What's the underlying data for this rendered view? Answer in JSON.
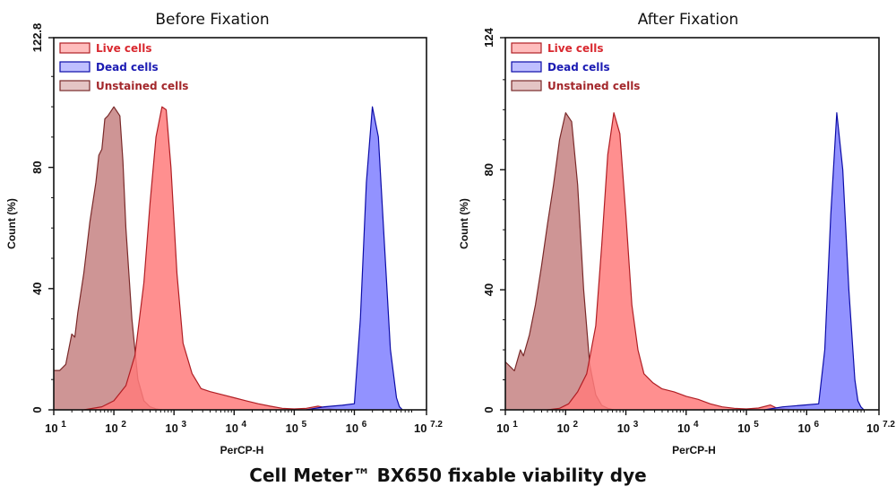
{
  "caption": "Cell Meter™ BX650 fixable viability dye",
  "chart_data": [
    {
      "type": "area",
      "title": "Before Fixation",
      "xlabel": "PerCP-H",
      "ylabel": "Count  (%)",
      "xscale": "log10",
      "xlim_log10": [
        1,
        7.2
      ],
      "ylim": [
        0,
        122.8
      ],
      "xticks": [
        {
          "base": "10",
          "exp": "1"
        },
        {
          "base": "10",
          "exp": "2"
        },
        {
          "base": "10",
          "exp": "3"
        },
        {
          "base": "10",
          "exp": "4"
        },
        {
          "base": "10",
          "exp": "5"
        },
        {
          "base": "10",
          "exp": "6"
        },
        {
          "base": "10",
          "exp": "7.2"
        }
      ],
      "yticks": [
        "0",
        "40",
        "80",
        "122.8"
      ],
      "ytick_values": [
        0,
        40,
        80,
        122.8
      ],
      "legend": {
        "placement": "top-left"
      },
      "series": [
        {
          "name": "Unstained cells",
          "color": "#c98a8a",
          "stroke": "#7a2a2a",
          "label_color": "#a3272b",
          "x_log10": [
            1.0,
            1.1,
            1.2,
            1.3,
            1.35,
            1.4,
            1.5,
            1.6,
            1.7,
            1.75,
            1.8,
            1.85,
            1.9,
            2.0,
            2.1,
            2.15,
            2.2,
            2.3,
            2.4,
            2.5,
            2.6,
            2.7,
            2.8
          ],
          "y": [
            13,
            13,
            15,
            25,
            24,
            32,
            45,
            62,
            75,
            84,
            86,
            96,
            97,
            100,
            97,
            82,
            60,
            30,
            10,
            3,
            1,
            0.3,
            0
          ]
        },
        {
          "name": "Live cells",
          "color": "#ff7b7b",
          "stroke": "#b01e24",
          "label_color": "#d9282f",
          "x_log10": [
            1.5,
            1.8,
            2.0,
            2.2,
            2.35,
            2.5,
            2.6,
            2.7,
            2.8,
            2.87,
            2.95,
            3.05,
            3.15,
            3.3,
            3.45,
            3.6,
            3.8,
            4.0,
            4.2,
            4.4,
            4.6,
            4.8,
            5.0,
            5.2,
            5.4,
            5.5,
            5.7
          ],
          "y": [
            0,
            1,
            3,
            8,
            18,
            42,
            68,
            90,
            100,
            99,
            80,
            45,
            22,
            12,
            7,
            6,
            5,
            4,
            3,
            2,
            1.2,
            0.5,
            0.3,
            0.5,
            1.2,
            0.8,
            0
          ]
        },
        {
          "name": "Dead cells",
          "color": "#7f7fff",
          "stroke": "#0c0ca8",
          "label_color": "#1b1bb3",
          "x_log10": [
            5.2,
            5.5,
            5.8,
            6.0,
            6.1,
            6.2,
            6.3,
            6.4,
            6.5,
            6.6,
            6.7,
            6.75,
            6.8
          ],
          "y": [
            0,
            1,
            1.5,
            2,
            30,
            75,
            100,
            90,
            55,
            20,
            4,
            1,
            0
          ]
        }
      ]
    },
    {
      "type": "area",
      "title": "After Fixation",
      "xlabel": "PerCP-H",
      "ylabel": "Count  (%)",
      "xscale": "log10",
      "xlim_log10": [
        1,
        7.2
      ],
      "ylim": [
        0,
        124
      ],
      "xticks": [
        {
          "base": "10",
          "exp": "1"
        },
        {
          "base": "10",
          "exp": "2"
        },
        {
          "base": "10",
          "exp": "3"
        },
        {
          "base": "10",
          "exp": "4"
        },
        {
          "base": "10",
          "exp": "5"
        },
        {
          "base": "10",
          "exp": "6"
        },
        {
          "base": "10",
          "exp": "7.2"
        }
      ],
      "yticks": [
        "0",
        "40",
        "80",
        "124"
      ],
      "ytick_values": [
        0,
        40,
        80,
        124
      ],
      "legend": {
        "placement": "top-left"
      },
      "series": [
        {
          "name": "Unstained cells",
          "color": "#c98a8a",
          "stroke": "#7a2a2a",
          "label_color": "#a3272b",
          "x_log10": [
            1.0,
            1.1,
            1.15,
            1.25,
            1.3,
            1.4,
            1.5,
            1.6,
            1.7,
            1.8,
            1.9,
            2.0,
            2.1,
            2.2,
            2.3,
            2.4,
            2.5,
            2.6,
            2.7,
            2.8
          ],
          "y": [
            16,
            14,
            13,
            20,
            18,
            25,
            35,
            48,
            62,
            75,
            90,
            99,
            96,
            75,
            40,
            15,
            5,
            1.5,
            0.5,
            0
          ]
        },
        {
          "name": "Live cells",
          "color": "#ff7b7b",
          "stroke": "#b01e24",
          "label_color": "#d9282f",
          "x_log10": [
            1.7,
            1.9,
            2.05,
            2.2,
            2.35,
            2.5,
            2.6,
            2.7,
            2.8,
            2.9,
            3.0,
            3.1,
            3.2,
            3.3,
            3.45,
            3.6,
            3.8,
            4.0,
            4.2,
            4.4,
            4.6,
            4.8,
            5.0,
            5.2,
            5.4,
            5.5,
            5.8
          ],
          "y": [
            0,
            0.5,
            2,
            6,
            12,
            28,
            55,
            85,
            99,
            92,
            65,
            35,
            20,
            12,
            9,
            7,
            6,
            4.5,
            3.5,
            2,
            1,
            0.5,
            0.3,
            0.6,
            1.6,
            0.6,
            0
          ]
        },
        {
          "name": "Dead cells",
          "color": "#7f7fff",
          "stroke": "#0c0ca8",
          "label_color": "#1b1bb3",
          "x_log10": [
            5.3,
            5.6,
            5.9,
            6.2,
            6.3,
            6.4,
            6.5,
            6.6,
            6.7,
            6.8,
            6.85,
            6.9,
            6.95
          ],
          "y": [
            0,
            1,
            1.5,
            2,
            20,
            65,
            99,
            80,
            40,
            10,
            3,
            1,
            0
          ]
        }
      ]
    }
  ]
}
